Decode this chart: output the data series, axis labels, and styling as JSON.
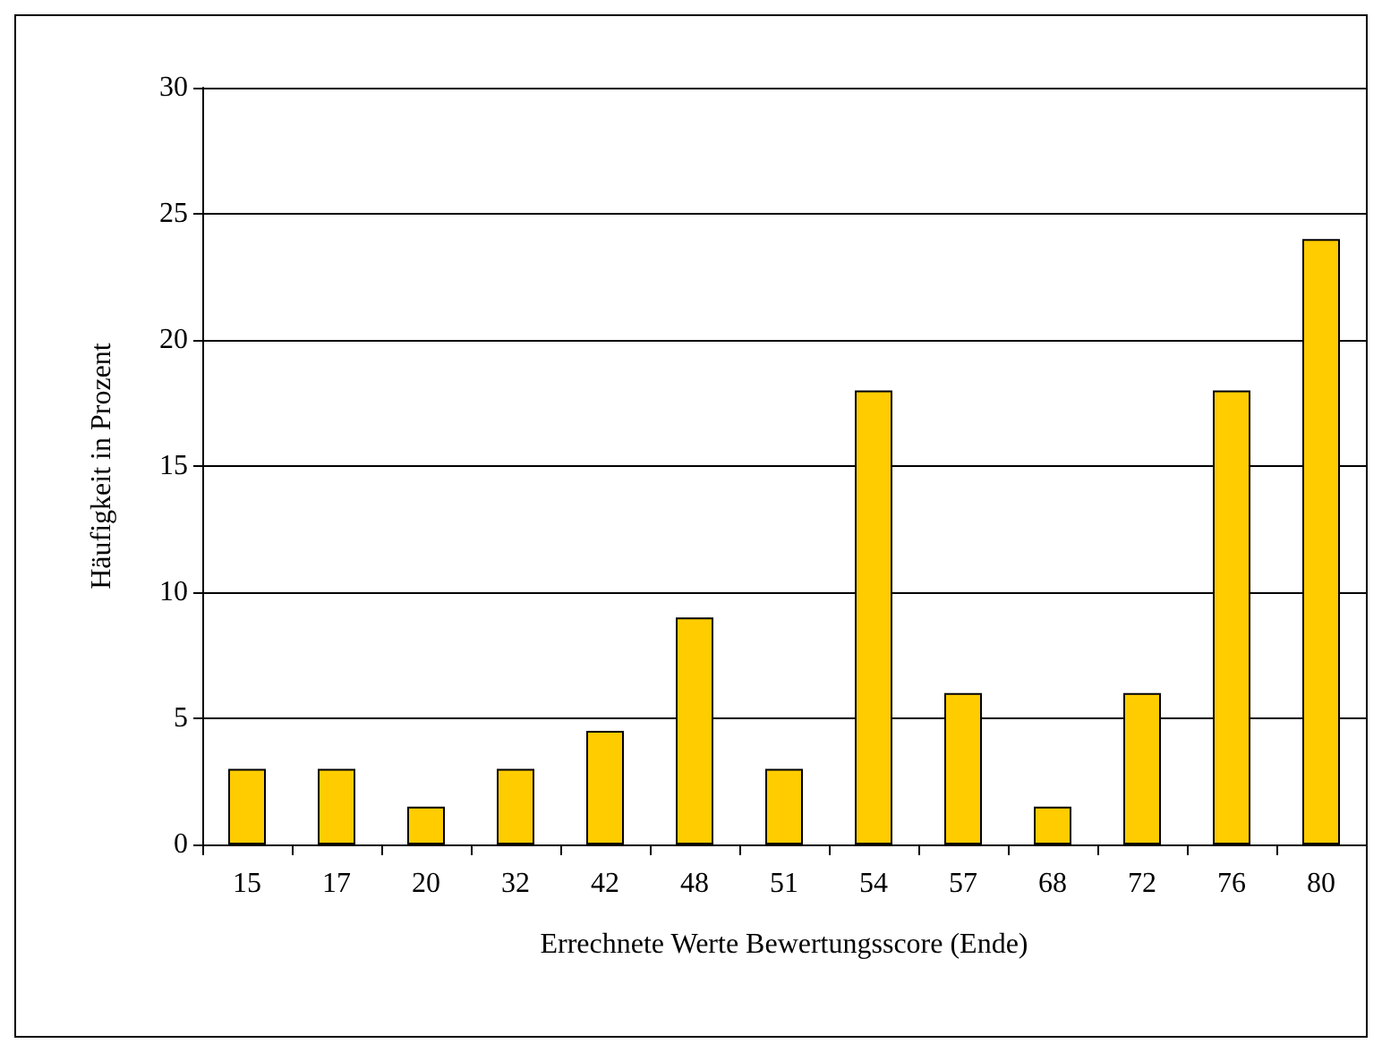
{
  "chart_data": {
    "type": "bar",
    "xlabel": "Errechnete Werte Bewertungsscore (Ende)",
    "ylabel": "Häufigkeit in Prozent",
    "categories": [
      "15",
      "17",
      "20",
      "32",
      "42",
      "48",
      "51",
      "54",
      "57",
      "68",
      "72",
      "76",
      "80"
    ],
    "values": [
      3,
      3,
      1.5,
      3,
      4.5,
      9,
      3,
      18,
      6,
      1.5,
      6,
      18,
      24
    ],
    "color": "#ffcc00",
    "ylim": [
      0,
      30
    ],
    "yticks": [
      0,
      5,
      10,
      15,
      20,
      25,
      30
    ],
    "grid": "y"
  }
}
